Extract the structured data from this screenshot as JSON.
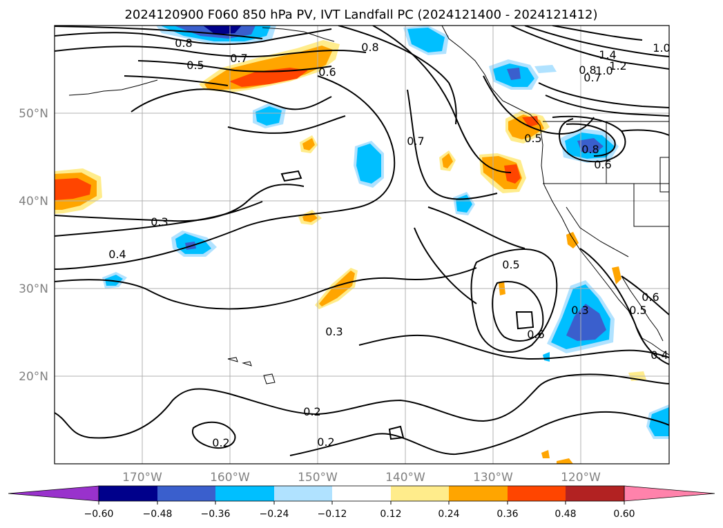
{
  "title": "2024120900 F060 850 hPa PV, IVT Landfall PC (2024121400 - 2024121412)",
  "latitude_labels": [
    "50°N",
    "40°N",
    "30°N",
    "20°N"
  ],
  "longitude_labels": [
    "170°W",
    "160°W",
    "150°W",
    "140°W",
    "130°W",
    "120°W"
  ],
  "colorbar": {
    "tick_labels": [
      "−0.60",
      "−0.48",
      "−0.36",
      "−0.24",
      "−0.12",
      "0.12",
      "0.24",
      "0.36",
      "0.48",
      "0.60"
    ],
    "colors": [
      "#9932CC",
      "#00008B",
      "#3A5FCD",
      "#00BFFF",
      "#B0E2FF",
      "#FFFFFF",
      "#FFEC8B",
      "#FFA500",
      "#FF4500",
      "#B22222",
      "#FF82AB"
    ]
  },
  "contour_labels": [
    "0.8",
    "0.7",
    "0.5",
    "0.6",
    "0.8",
    "1.4",
    "1.2",
    "1.0",
    "1.0",
    "0.8",
    "0.7",
    "0.7",
    "0.5",
    "0.8",
    "0.6",
    "0.3",
    "0.4",
    "0.5",
    "0.3",
    "0.6",
    "0.3",
    "0.6",
    "0.5",
    "0.4",
    "0.2",
    "0.2",
    "0.2"
  ]
}
